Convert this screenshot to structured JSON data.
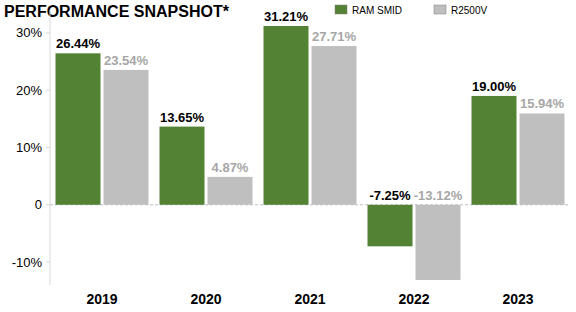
{
  "chart_data": {
    "type": "bar",
    "title": "PERFORMANCE SNAPSHOT*",
    "categories": [
      "2019",
      "2020",
      "2021",
      "2022",
      "2023"
    ],
    "series": [
      {
        "name": "RAM SMID",
        "color": "#548235",
        "values": [
          26.44,
          13.65,
          31.21,
          -7.25,
          19.0
        ],
        "value_labels": [
          "26.44%",
          "13.65%",
          "31.21%",
          "-7.25%",
          "19.00%"
        ]
      },
      {
        "name": "R2500V",
        "color": "#bfbfbf",
        "values": [
          23.54,
          4.87,
          27.71,
          -13.12,
          15.94
        ],
        "value_labels": [
          "23.54%",
          "4.87%",
          "27.71%",
          "-13.12%",
          "15.94%"
        ]
      }
    ],
    "ylim": [
      -14,
      34
    ],
    "yticks": [
      {
        "value": -10,
        "label": "-10%"
      },
      0,
      {
        "value": 10,
        "label": "10%"
      },
      {
        "value": 20,
        "label": "20%"
      },
      {
        "value": 30,
        "label": "30%"
      }
    ],
    "grid": false,
    "legend": "top-right",
    "data_labels": true
  }
}
